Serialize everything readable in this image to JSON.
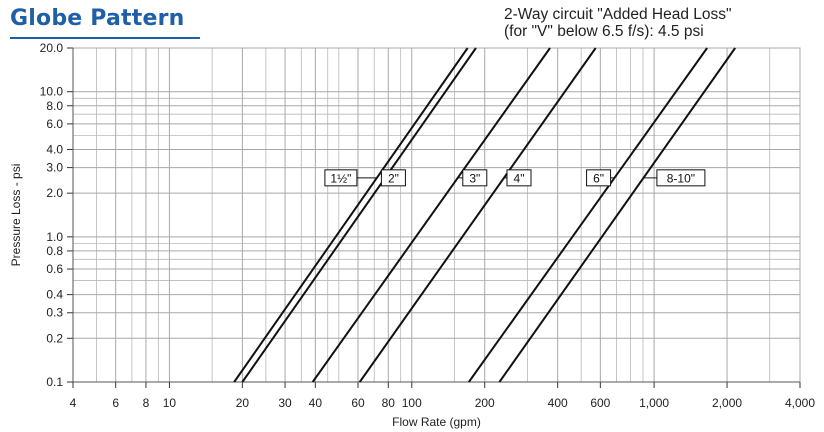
{
  "header": {
    "title": "Globe Pattern",
    "note_line1": "2-Way circuit \"Added Head Loss\"",
    "note_line2": "(for \"V\" below 6.5 f/s): 4.5 psi"
  },
  "chart_data": {
    "type": "line",
    "xlabel": "Flow Rate (gpm)",
    "ylabel": "Pressure Loss - psi",
    "xscale": "log",
    "yscale": "log",
    "xlim": [
      4,
      4000
    ],
    "ylim": [
      0.1,
      20
    ],
    "grid": true,
    "x_ticks": [
      {
        "value": 4,
        "label": "4"
      },
      {
        "value": 6,
        "label": "6"
      },
      {
        "value": 8,
        "label": "8"
      },
      {
        "value": 10,
        "label": "10"
      },
      {
        "value": 20,
        "label": "20"
      },
      {
        "value": 30,
        "label": "30"
      },
      {
        "value": 40,
        "label": "40"
      },
      {
        "value": 60,
        "label": "60"
      },
      {
        "value": 80,
        "label": "80"
      },
      {
        "value": 100,
        "label": "100"
      },
      {
        "value": 200,
        "label": "200"
      },
      {
        "value": 400,
        "label": "400"
      },
      {
        "value": 600,
        "label": "600"
      },
      {
        "value": 1000,
        "label": "1,000"
      },
      {
        "value": 2000,
        "label": "2,000"
      },
      {
        "value": 4000,
        "label": "4,000"
      }
    ],
    "y_ticks": [
      {
        "value": 0.1,
        "label": "0.1"
      },
      {
        "value": 0.2,
        "label": "0.2"
      },
      {
        "value": 0.3,
        "label": "0.3"
      },
      {
        "value": 0.4,
        "label": "0.4"
      },
      {
        "value": 0.6,
        "label": "0.6"
      },
      {
        "value": 0.8,
        "label": "0.8"
      },
      {
        "value": 1.0,
        "label": "1.0"
      },
      {
        "value": 2.0,
        "label": "2.0"
      },
      {
        "value": 3.0,
        "label": "3.0"
      },
      {
        "value": 4.0,
        "label": "4.0"
      },
      {
        "value": 6.0,
        "label": "6.0"
      },
      {
        "value": 8.0,
        "label": "8.0"
      },
      {
        "value": 10.0,
        "label": "10.0"
      },
      {
        "value": 20.0,
        "label": "20.0"
      }
    ],
    "x_gridlines": [
      5,
      7,
      9,
      15,
      25,
      35,
      45,
      50,
      70,
      90,
      150,
      300,
      500,
      700,
      800,
      900,
      3000
    ],
    "y_gridlines": [
      0.5,
      0.7,
      0.9,
      5,
      7,
      9
    ],
    "series": [
      {
        "name": "1½\"",
        "x": [
          18.5,
          170
        ],
        "y": [
          0.1,
          20
        ]
      },
      {
        "name": "2\"",
        "x": [
          20,
          184
        ],
        "y": [
          0.1,
          20
        ]
      },
      {
        "name": "3\"",
        "x": [
          39,
          372
        ],
        "y": [
          0.1,
          20
        ]
      },
      {
        "name": "4\"",
        "x": [
          61,
          574
        ],
        "y": [
          0.1,
          20
        ]
      },
      {
        "name": "6\"",
        "x": [
          172,
          1655
        ],
        "y": [
          0.1,
          20
        ]
      },
      {
        "name": "8-10\"",
        "x": [
          230,
          2160
        ],
        "y": [
          0.1,
          20
        ]
      }
    ],
    "line_labels": [
      {
        "series": "1½\"",
        "x": 51,
        "y": 2.55
      },
      {
        "series": "2\"",
        "x": 84,
        "y": 2.55
      },
      {
        "series": "3\"",
        "x": 182,
        "y": 2.55
      },
      {
        "series": "4\"",
        "x": 277,
        "y": 2.55
      },
      {
        "series": "6\"",
        "x": 590,
        "y": 2.55
      },
      {
        "series": "8-10\"",
        "x": 1290,
        "y": 2.55
      }
    ]
  }
}
